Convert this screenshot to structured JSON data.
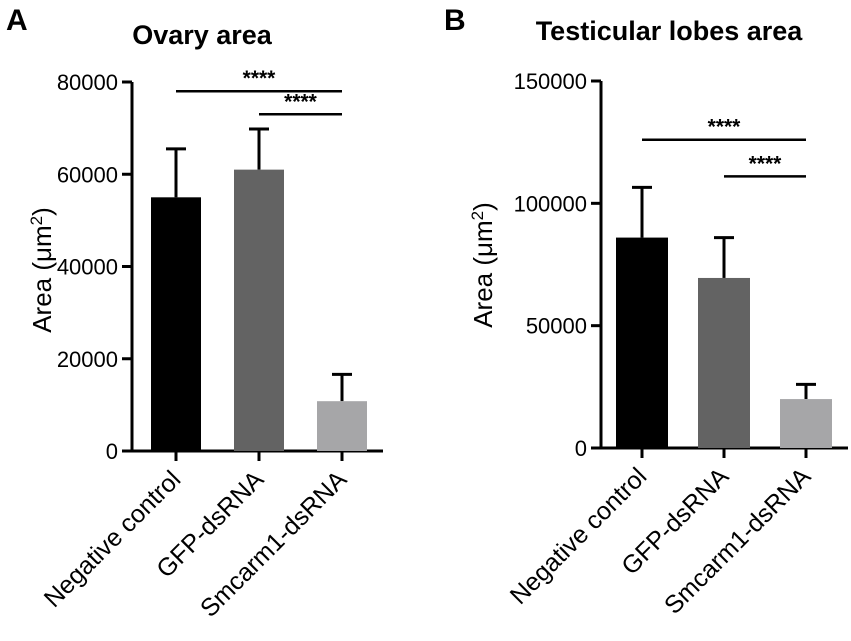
{
  "chart_data": [
    {
      "panel": "A",
      "type": "bar",
      "title": "Ovary area",
      "xlabel": "",
      "ylabel": "Area (μm²)",
      "ylabel_parts": {
        "base": "Area (μm",
        "sup": "2",
        "close": ")"
      },
      "categories": [
        "Negative control",
        "GFP-dsRNA",
        "Smcarm1-dsRNA"
      ],
      "values": [
        55000,
        61000,
        10800
      ],
      "errors": [
        10500,
        8800,
        5800
      ],
      "colors": [
        "#000000",
        "#636363",
        "#a6a6a8"
      ],
      "ylim": [
        0,
        80000
      ],
      "yticks": [
        0,
        20000,
        40000,
        60000,
        80000
      ],
      "ytick_labels": [
        "0",
        "20000",
        "40000",
        "60000",
        "80000"
      ],
      "significance": [
        {
          "from": 0,
          "to": 2,
          "label": "****",
          "y": 78000
        },
        {
          "from": 1,
          "to": 2,
          "label": "****",
          "y": 73000
        }
      ]
    },
    {
      "panel": "B",
      "type": "bar",
      "title": "Testicular lobes area",
      "xlabel": "",
      "ylabel": "Area (μm²)",
      "ylabel_parts": {
        "base": "Area (μm",
        "sup": "2",
        "close": ")"
      },
      "categories": [
        "Negative control",
        "GFP-dsRNA",
        "Smcarm1-dsRNA"
      ],
      "values": [
        86000,
        69500,
        20000
      ],
      "errors": [
        20500,
        16500,
        6000
      ],
      "colors": [
        "#000000",
        "#636363",
        "#a6a6a8"
      ],
      "ylim": [
        0,
        150000
      ],
      "yticks": [
        0,
        50000,
        100000,
        150000
      ],
      "ytick_labels": [
        "0",
        "50000",
        "100000",
        "150000"
      ],
      "significance": [
        {
          "from": 0,
          "to": 2,
          "label": "****",
          "y": 126000
        },
        {
          "from": 1,
          "to": 2,
          "label": "****",
          "y": 111000
        }
      ]
    }
  ]
}
